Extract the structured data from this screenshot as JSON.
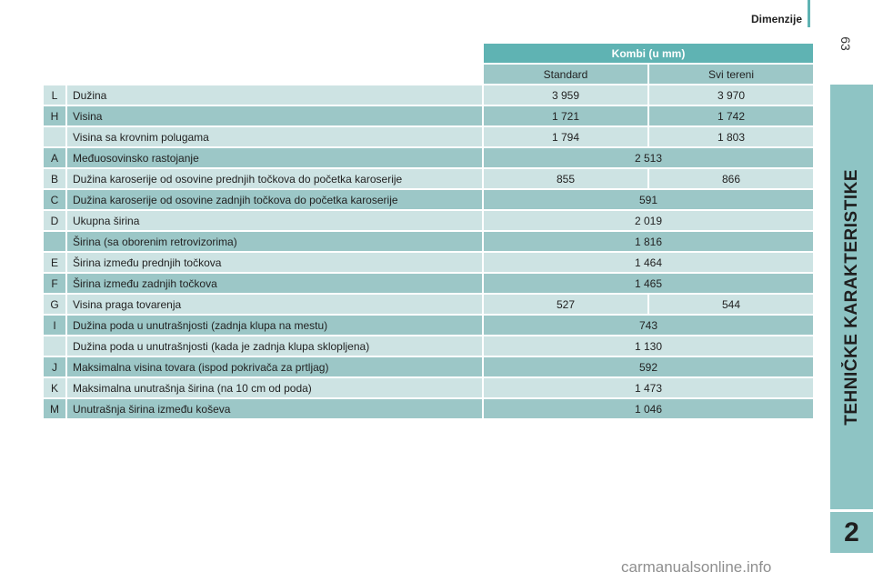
{
  "header": {
    "section_title": "Dimenzije",
    "page_number": "63"
  },
  "side_tab": {
    "label": "TEHNIČKE KARAKTERISTIKE",
    "chapter": "2"
  },
  "watermark": "carmanualsonline.info",
  "table": {
    "group_header": "Kombi (u mm)",
    "col_headers": [
      "Standard",
      "Svi tereni"
    ],
    "rows": [
      {
        "code": "L",
        "label": "Dužina",
        "values": [
          "3 959",
          "3 970"
        ]
      },
      {
        "code": "H",
        "label": "Visina",
        "values": [
          "1 721",
          "1 742"
        ]
      },
      {
        "code": "",
        "label": "Visina sa krovnim polugama",
        "values": [
          "1 794",
          "1 803"
        ]
      },
      {
        "code": "A",
        "label": "Međuosovinsko rastojanje",
        "values": [
          "2 513"
        ]
      },
      {
        "code": "B",
        "label": "Dužina karoserije od osovine prednjih točkova do početka karoserije",
        "values": [
          "855",
          "866"
        ]
      },
      {
        "code": "C",
        "label": "Dužina karoserije od osovine zadnjih točkova do početka karoserije",
        "values": [
          "591"
        ]
      },
      {
        "code": "D",
        "label": "Ukupna širina",
        "values": [
          "2 019"
        ]
      },
      {
        "code": "",
        "label": "Širina (sa oborenim retrovizorima)",
        "values": [
          "1 816"
        ]
      },
      {
        "code": "E",
        "label": "Širina između prednjih točkova",
        "values": [
          "1 464"
        ]
      },
      {
        "code": "F",
        "label": "Širina između zadnjih točkova",
        "values": [
          "1 465"
        ]
      },
      {
        "code": "G",
        "label": "Visina praga tovarenja",
        "values": [
          "527",
          "544"
        ]
      },
      {
        "code": "I",
        "label": "Dužina poda u unutrašnjosti (zadnja klupa na mestu)",
        "values": [
          "743"
        ]
      },
      {
        "code": "",
        "label": "Dužina poda u unutrašnjosti (kada je zadnja klupa sklopljena)",
        "values": [
          "1 130"
        ]
      },
      {
        "code": "J",
        "label": "Maksimalna visina tovara (ispod pokrivača za prtljag)",
        "values": [
          "592"
        ]
      },
      {
        "code": "K",
        "label": "Maksimalna unutrašnja širina (na 10 cm od poda)",
        "values": [
          "1 473"
        ]
      },
      {
        "code": "M",
        "label": "Unutrašnja širina između koševa",
        "values": [
          "1 046"
        ]
      }
    ]
  }
}
